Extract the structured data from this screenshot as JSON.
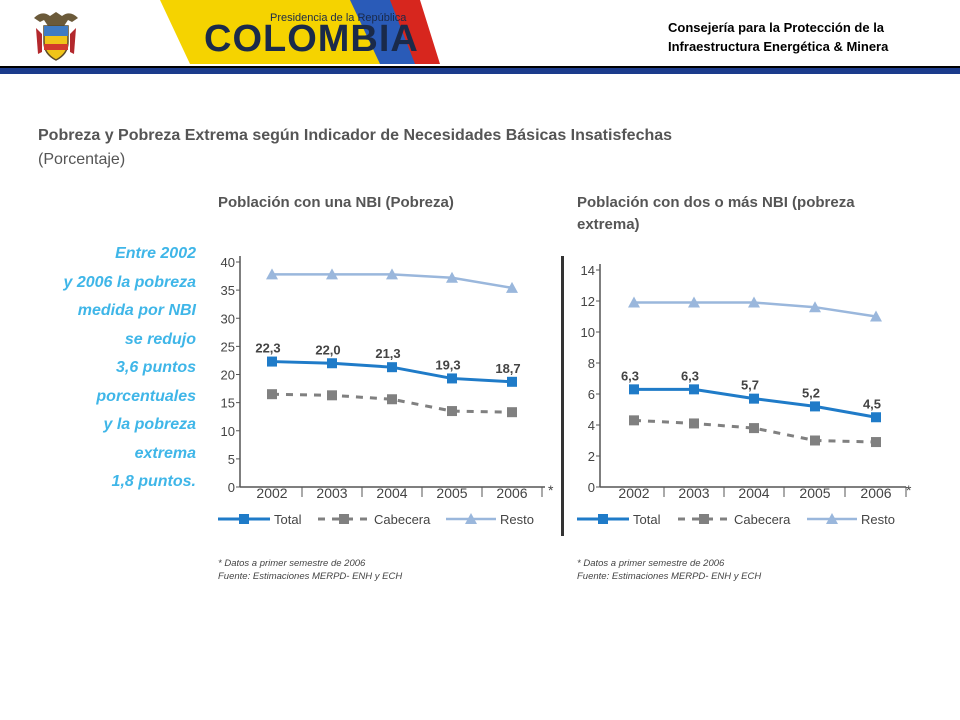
{
  "header": {
    "logo_small": "Presidencia de la República",
    "logo_big": "COLOMBIA",
    "right_line1": "Consejería para la Protección de la",
    "right_line2": "Infraestructura Energética & Minera",
    "accent_color": "#1b3b8c"
  },
  "page": {
    "title": "Pobreza y Pobreza Extrema según Indicador de Necesidades Básicas Insatisfechas",
    "subtitle": "(Porcentaje)"
  },
  "sidebar": {
    "lines": [
      "Entre 2002",
      "y 2006 la pobreza",
      "medida por NBI",
      "se redujo",
      "3,6 puntos",
      "porcentuales",
      "y la pobreza",
      "extrema",
      "1,8 puntos."
    ],
    "color": "#3fb6e8"
  },
  "colors": {
    "total": "#1f7bc8",
    "cabecera": "#808080",
    "resto": "#9ab7dc"
  },
  "chart_data": [
    {
      "type": "line",
      "title": "Población con una NBI (Pobreza)",
      "categories": [
        "2002",
        "2003",
        "2004",
        "2005",
        "2006"
      ],
      "ticks": [
        0,
        5,
        10,
        15,
        20,
        25,
        30,
        35,
        40
      ],
      "ylim": [
        0,
        40
      ],
      "last_star": "*",
      "series": [
        {
          "name": "Total",
          "values": [
            22.3,
            22.0,
            21.3,
            19.3,
            18.7
          ],
          "labels": [
            "22,3",
            "22,0",
            "21,3",
            "19,3",
            "18,7"
          ]
        },
        {
          "name": "Cabecera",
          "values": [
            16.5,
            16.3,
            15.6,
            13.5,
            13.3
          ]
        },
        {
          "name": "Resto",
          "values": [
            37.8,
            37.8,
            37.8,
            37.2,
            35.4
          ]
        }
      ],
      "footnote1": "* Datos a primer semestre de 2006",
      "footnote2": "Fuente: Estimaciones MERPD- ENH y ECH"
    },
    {
      "type": "line",
      "title": "Población con dos o más NBI (pobreza extrema)",
      "categories": [
        "2002",
        "2003",
        "2004",
        "2005",
        "2006"
      ],
      "ticks": [
        0,
        2,
        4,
        6,
        8,
        10,
        12,
        14
      ],
      "ylim": [
        0,
        14
      ],
      "last_star": "*",
      "series": [
        {
          "name": "Total",
          "values": [
            6.3,
            6.3,
            5.7,
            5.2,
            4.5
          ],
          "labels": [
            "6,3",
            "6,3",
            "5,7",
            "5,2",
            "4,5"
          ]
        },
        {
          "name": "Cabecera",
          "values": [
            4.3,
            4.1,
            3.8,
            3.0,
            2.9
          ]
        },
        {
          "name": "Resto",
          "values": [
            11.9,
            11.9,
            11.9,
            11.6,
            11.0
          ]
        }
      ],
      "footnote1": "* Datos a primer semestre de 2006",
      "footnote2": "Fuente: Estimaciones MERPD- ENH y ECH"
    }
  ]
}
